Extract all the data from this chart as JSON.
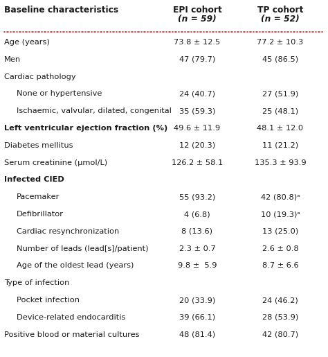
{
  "title": "Baseline characteristics",
  "col1_line1": "EPI cohort",
  "col1_line2": "(n = 59)",
  "col2_line1": "TP cohort",
  "col2_line2": "(n = 52)",
  "rows": [
    {
      "label": "Age (years)",
      "epi": "73.8 ± 12.5",
      "tp": "77.2 ± 10.3",
      "bold": false,
      "indent": 0
    },
    {
      "label": "Men",
      "epi": "47 (79.7)",
      "tp": "45 (86.5)",
      "bold": false,
      "indent": 0
    },
    {
      "label": "Cardiac pathology",
      "epi": "",
      "tp": "",
      "bold": false,
      "indent": 0
    },
    {
      "label": "None or hypertensive",
      "epi": "24 (40.7)",
      "tp": "27 (51.9)",
      "bold": false,
      "indent": 1
    },
    {
      "label": "Ischaemic, valvular, dilated, congenital",
      "epi": "35 (59.3)",
      "tp": "25 (48.1)",
      "bold": false,
      "indent": 1
    },
    {
      "label": "Left ventricular ejection fraction (%)",
      "epi": "49.6 ± 11.9",
      "tp": "48.1 ± 12.0",
      "bold": true,
      "indent": 0
    },
    {
      "label": "Diabetes mellitus",
      "epi": "12 (20.3)",
      "tp": "11 (21.2)",
      "bold": false,
      "indent": 0
    },
    {
      "label": "Serum creatinine (μmol/L)",
      "epi": "126.2 ± 58.1",
      "tp": "135.3 ± 93.9",
      "bold": false,
      "indent": 0
    },
    {
      "label": "Infected CIED",
      "epi": "",
      "tp": "",
      "bold": true,
      "indent": 0
    },
    {
      "label": "Pacemaker",
      "epi": "55 (93.2)",
      "tp": "42 (80.8)ᵃ",
      "bold": false,
      "indent": 1
    },
    {
      "label": "Defibrillator",
      "epi": "4 (6.8)",
      "tp": "10 (19.3)ᵃ",
      "bold": false,
      "indent": 1
    },
    {
      "label": "Cardiac resynchronization",
      "epi": "8 (13.6)",
      "tp": "13 (25.0)",
      "bold": false,
      "indent": 1
    },
    {
      "label": "Number of leads (lead[s]/patient)",
      "epi": "2.3 ± 0.7",
      "tp": "2.6 ± 0.8",
      "bold": false,
      "indent": 1
    },
    {
      "label": "Age of the oldest lead (years)",
      "epi": "9.8 ±  5.9",
      "tp": "8.7 ± 6.6",
      "bold": false,
      "indent": 1
    },
    {
      "label": "Type of infection",
      "epi": "",
      "tp": "",
      "bold": false,
      "indent": 0
    },
    {
      "label": "Pocket infection",
      "epi": "20 (33.9)",
      "tp": "24 (46.2)",
      "bold": false,
      "indent": 1
    },
    {
      "label": "Device-related endocarditis",
      "epi": "39 (66.1)",
      "tp": "28 (53.9)",
      "bold": false,
      "indent": 1
    },
    {
      "label": "Positive blood or material cultures",
      "epi": "48 (81.4)",
      "tp": "42 (80.7)",
      "bold": false,
      "indent": 0
    }
  ],
  "dotted_line_color": "#cc2222",
  "bg_color": "#ffffff",
  "text_color": "#1a1a1a",
  "font_size": 8.2,
  "header_font_size": 8.8
}
